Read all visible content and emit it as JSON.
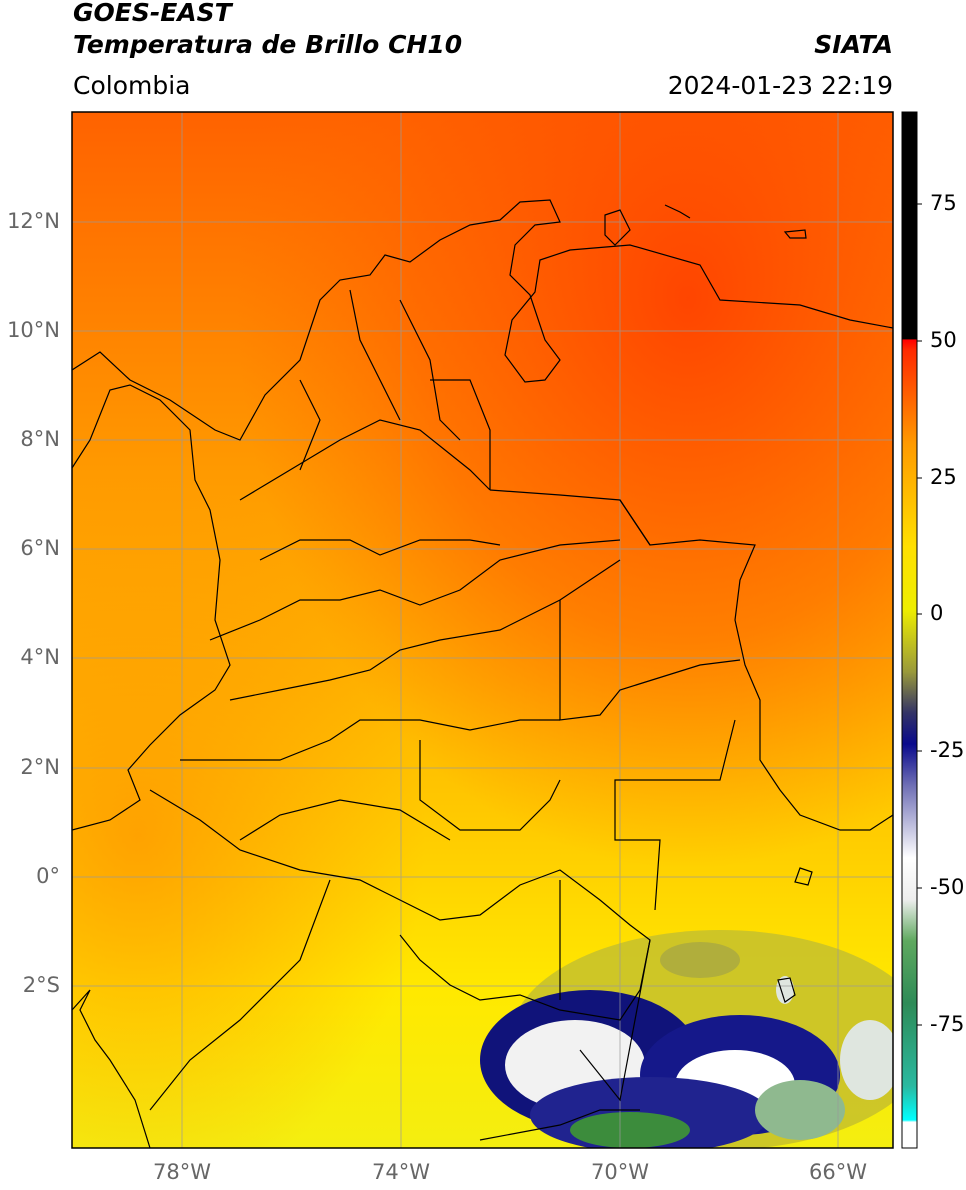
{
  "header": {
    "title_line1": "GOES-EAST",
    "title_line2": "Temperatura de Brillo CH10",
    "organization": "SIATA",
    "region": "Colombia",
    "timestamp": "2024-01-23 22:19"
  },
  "map": {
    "latitude_labels": [
      "12°N",
      "10°N",
      "8°N",
      "6°N",
      "4°N",
      "2°N",
      "0°",
      "2°S"
    ],
    "longitude_labels": [
      "78°W",
      "74°W",
      "70°W",
      "66°W"
    ],
    "colors": {
      "hot_north": "#ff4a00",
      "warm": "#ff8c00",
      "mid": "#ffc400",
      "cool": "#fff000",
      "olive": "#b9b52a",
      "navy": "#10137a",
      "white": "#f4f4f4",
      "green": "#3c8c3c",
      "border": "#000000"
    }
  },
  "colorbar": {
    "tick_labels": [
      "75",
      "50",
      "25",
      "0",
      "-25",
      "-50",
      "-75"
    ],
    "colors": [
      "#00ffff",
      "#ffffff",
      "#2e7d32",
      "#ffffff",
      "#0a0a8c",
      "#ffff00",
      "#ff0000",
      "#000000"
    ]
  }
}
